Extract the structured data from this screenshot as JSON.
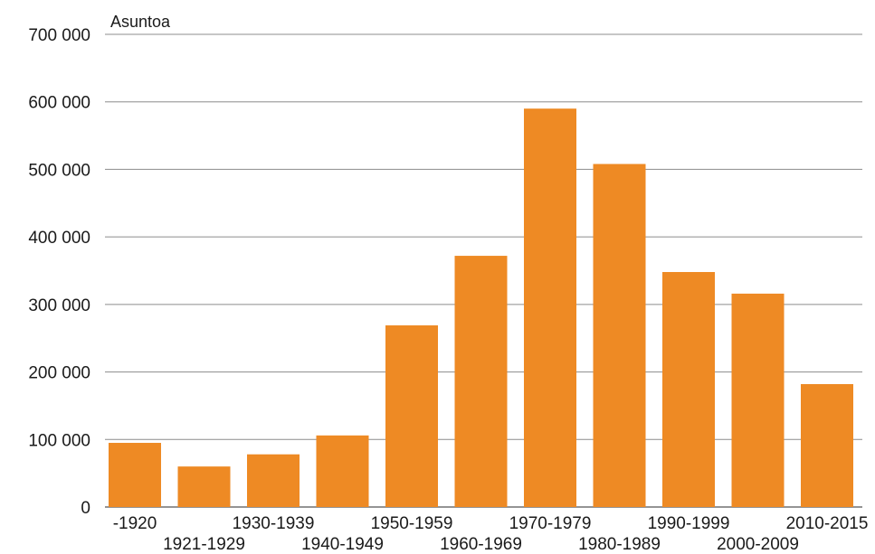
{
  "chart_data": {
    "type": "bar",
    "unit_label": "Asuntoa",
    "categories": [
      "-1920",
      "1921-1929",
      "1930-1939",
      "1940-1949",
      "1950-1959",
      "1960-1969",
      "1970-1979",
      "1980-1989",
      "1990-1999",
      "2000-2009",
      "2010-2015"
    ],
    "values": [
      95000,
      60000,
      78000,
      106000,
      269000,
      372000,
      590000,
      508000,
      348000,
      316000,
      182000
    ],
    "ylim": [
      0,
      700000
    ],
    "y_ticks": [
      0,
      100000,
      200000,
      300000,
      400000,
      500000,
      600000,
      700000
    ],
    "y_tick_labels": [
      "0",
      "100 000",
      "200 000",
      "300 000",
      "400 000",
      "500 000",
      "600 000",
      "700 000"
    ],
    "grid": true,
    "legend": "none",
    "bar_color": "#ee8a24",
    "grid_color": "#8c8c8c"
  }
}
